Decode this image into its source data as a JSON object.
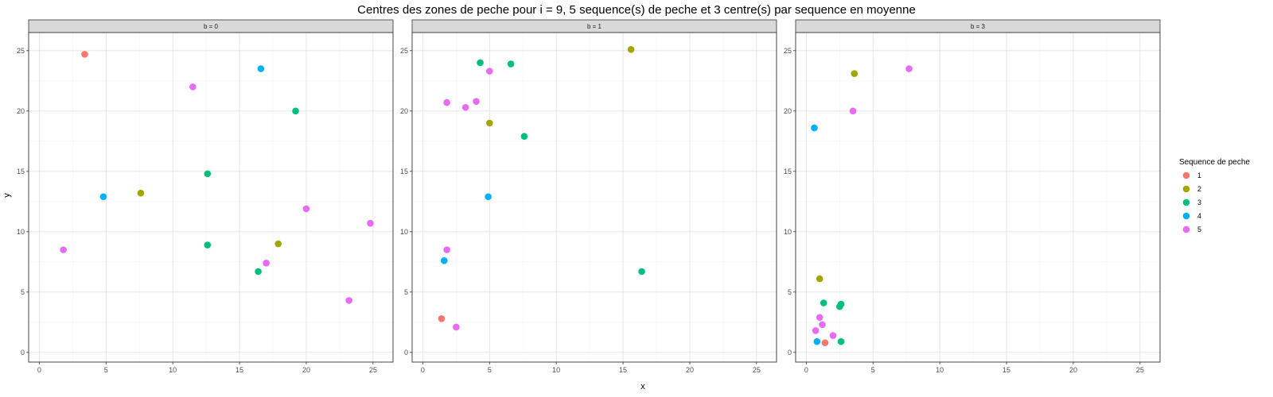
{
  "chart_data": {
    "type": "scatter",
    "title": "Centres des zones de peche pour i = 9, 5 sequence(s) de peche et 3 centre(s) par sequence en moyenne",
    "xlabel": "x",
    "ylabel": "y",
    "xlim": [
      -0.8,
      26.5
    ],
    "ylim": [
      -0.8,
      26.5
    ],
    "xticks": [
      0,
      5,
      10,
      15,
      20,
      25
    ],
    "yticks": [
      0,
      5,
      10,
      15,
      20,
      25
    ],
    "grid": true,
    "legend": {
      "title": "Sequence de peche",
      "placement": "right",
      "entries": [
        {
          "label": "1",
          "color": "#F8766D"
        },
        {
          "label": "2",
          "color": "#A3A500"
        },
        {
          "label": "3",
          "color": "#00BF7D"
        },
        {
          "label": "4",
          "color": "#00B0F6"
        },
        {
          "label": "5",
          "color": "#E76BF3"
        }
      ]
    },
    "panels": [
      {
        "label": "b = 0",
        "points": [
          {
            "x": 3.4,
            "y": 24.7,
            "seq": "1"
          },
          {
            "x": 7.6,
            "y": 13.2,
            "seq": "2"
          },
          {
            "x": 17.9,
            "y": 9.0,
            "seq": "2"
          },
          {
            "x": 19.2,
            "y": 20.0,
            "seq": "3"
          },
          {
            "x": 12.6,
            "y": 14.8,
            "seq": "3"
          },
          {
            "x": 12.6,
            "y": 8.9,
            "seq": "3"
          },
          {
            "x": 16.4,
            "y": 6.7,
            "seq": "3"
          },
          {
            "x": 16.6,
            "y": 23.5,
            "seq": "4"
          },
          {
            "x": 4.8,
            "y": 12.9,
            "seq": "4"
          },
          {
            "x": 11.5,
            "y": 22.0,
            "seq": "5"
          },
          {
            "x": 1.8,
            "y": 8.5,
            "seq": "5"
          },
          {
            "x": 20.0,
            "y": 11.9,
            "seq": "5"
          },
          {
            "x": 24.8,
            "y": 10.7,
            "seq": "5"
          },
          {
            "x": 17.0,
            "y": 7.4,
            "seq": "5"
          },
          {
            "x": 23.2,
            "y": 4.3,
            "seq": "5"
          }
        ]
      },
      {
        "label": "b = 1",
        "points": [
          {
            "x": 1.4,
            "y": 2.8,
            "seq": "1"
          },
          {
            "x": 15.6,
            "y": 25.1,
            "seq": "2"
          },
          {
            "x": 5.0,
            "y": 19.0,
            "seq": "2"
          },
          {
            "x": 4.3,
            "y": 24.0,
            "seq": "3"
          },
          {
            "x": 6.6,
            "y": 23.9,
            "seq": "3"
          },
          {
            "x": 7.6,
            "y": 17.9,
            "seq": "3"
          },
          {
            "x": 16.4,
            "y": 6.7,
            "seq": "3"
          },
          {
            "x": 4.9,
            "y": 12.9,
            "seq": "4"
          },
          {
            "x": 1.6,
            "y": 7.6,
            "seq": "4"
          },
          {
            "x": 5.0,
            "y": 23.3,
            "seq": "5"
          },
          {
            "x": 1.8,
            "y": 20.7,
            "seq": "5"
          },
          {
            "x": 3.2,
            "y": 20.3,
            "seq": "5"
          },
          {
            "x": 4.0,
            "y": 20.8,
            "seq": "5"
          },
          {
            "x": 1.8,
            "y": 8.5,
            "seq": "5"
          },
          {
            "x": 2.5,
            "y": 2.1,
            "seq": "5"
          }
        ]
      },
      {
        "label": "b = 3",
        "points": [
          {
            "x": 1.4,
            "y": 0.8,
            "seq": "1"
          },
          {
            "x": 3.6,
            "y": 23.1,
            "seq": "2"
          },
          {
            "x": 1.0,
            "y": 6.1,
            "seq": "2"
          },
          {
            "x": 1.3,
            "y": 4.1,
            "seq": "3"
          },
          {
            "x": 2.6,
            "y": 4.0,
            "seq": "3"
          },
          {
            "x": 2.5,
            "y": 3.8,
            "seq": "3"
          },
          {
            "x": 2.6,
            "y": 0.9,
            "seq": "3"
          },
          {
            "x": 0.6,
            "y": 18.6,
            "seq": "4"
          },
          {
            "x": 0.8,
            "y": 0.9,
            "seq": "4"
          },
          {
            "x": 7.7,
            "y": 23.5,
            "seq": "5"
          },
          {
            "x": 3.5,
            "y": 20.0,
            "seq": "5"
          },
          {
            "x": 1.0,
            "y": 2.9,
            "seq": "5"
          },
          {
            "x": 1.2,
            "y": 2.3,
            "seq": "5"
          },
          {
            "x": 0.7,
            "y": 1.8,
            "seq": "5"
          },
          {
            "x": 2.0,
            "y": 1.4,
            "seq": "5"
          }
        ]
      }
    ]
  }
}
